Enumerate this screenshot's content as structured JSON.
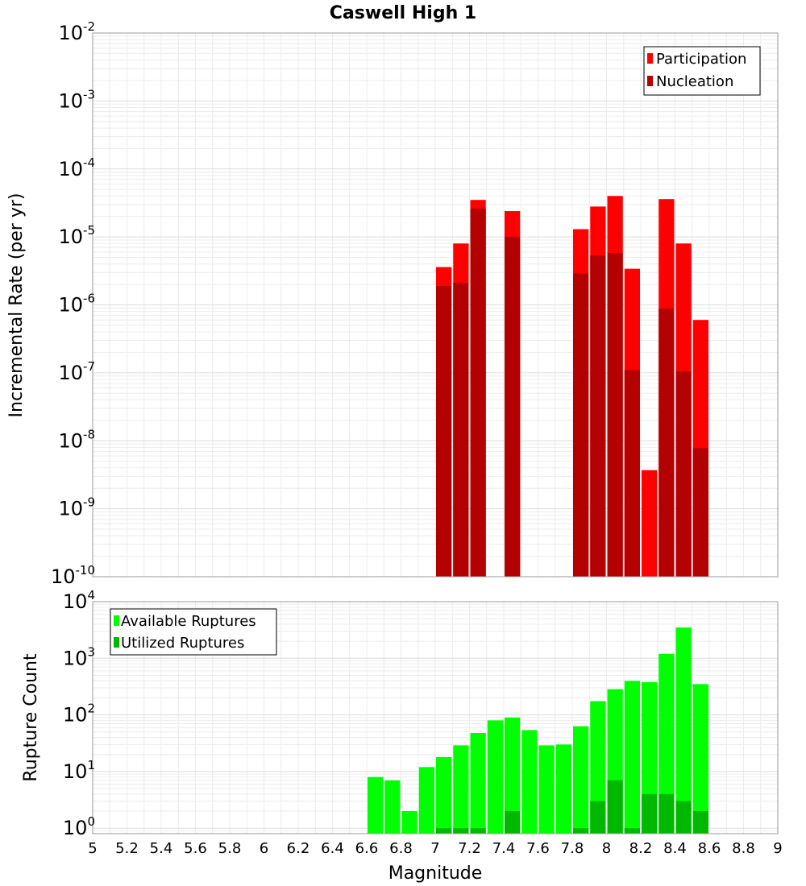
{
  "chart_data": [
    {
      "type": "bar",
      "title": "Caswell High 1",
      "xlabel": "",
      "ylabel": "Incremental Rate (per yr)",
      "yscale": "log",
      "ylim": [
        1e-10,
        0.01
      ],
      "xlim": [
        5,
        9
      ],
      "bin_width": 0.1,
      "legend_position": "top-right",
      "grid": true,
      "y_ticks": [
        {
          "base": "10",
          "exp": "-2"
        },
        {
          "base": "10",
          "exp": "-3"
        },
        {
          "base": "10",
          "exp": "-4"
        },
        {
          "base": "10",
          "exp": "-5"
        },
        {
          "base": "10",
          "exp": "-6"
        },
        {
          "base": "10",
          "exp": "-7"
        },
        {
          "base": "10",
          "exp": "-8"
        },
        {
          "base": "10",
          "exp": "-9"
        },
        {
          "base": "10",
          "exp": "-10"
        }
      ],
      "x": [
        7.05,
        7.15,
        7.25,
        7.45,
        7.85,
        7.95,
        8.05,
        8.15,
        8.25,
        8.35,
        8.45,
        8.55
      ],
      "series": [
        {
          "name": "Participation",
          "color": "#ff0000",
          "values": [
            3.6e-06,
            8e-06,
            3.5e-05,
            2.4e-05,
            1.3e-05,
            2.8e-05,
            4e-05,
            3.4e-06,
            3.7e-09,
            3.6e-05,
            8e-06,
            6e-07
          ]
        },
        {
          "name": "Nucleation",
          "color": "#b30000",
          "values": [
            1.9e-06,
            2.1e-06,
            2.6e-05,
            1e-05,
            2.9e-06,
            5.3e-06,
            5.8e-06,
            1.1e-07,
            null,
            8.8e-07,
            1.05e-07,
            7.8e-09
          ]
        }
      ]
    },
    {
      "type": "bar",
      "title": "",
      "xlabel": "Magnitude",
      "ylabel": "Rupture Count",
      "yscale": "log",
      "ylim": [
        0.8,
        10000
      ],
      "xlim": [
        5,
        9
      ],
      "bin_width": 0.1,
      "legend_position": "top-left",
      "grid": true,
      "x_ticks": [
        "5",
        "5.2",
        "5.4",
        "5.6",
        "5.8",
        "6",
        "6.2",
        "6.4",
        "6.6",
        "6.8",
        "7",
        "7.2",
        "7.4",
        "7.6",
        "7.8",
        "8",
        "8.2",
        "8.4",
        "8.6",
        "8.8",
        "9"
      ],
      "y_ticks": [
        {
          "base": "10",
          "exp": "0"
        },
        {
          "base": "10",
          "exp": "1"
        },
        {
          "base": "10",
          "exp": "2"
        },
        {
          "base": "10",
          "exp": "3"
        },
        {
          "base": "10",
          "exp": "4"
        }
      ],
      "x": [
        6.65,
        6.75,
        6.85,
        6.95,
        7.05,
        7.15,
        7.25,
        7.35,
        7.45,
        7.55,
        7.65,
        7.75,
        7.85,
        7.95,
        8.05,
        8.15,
        8.25,
        8.35,
        8.45,
        8.55
      ],
      "series": [
        {
          "name": "Available Ruptures",
          "color": "#00ff00",
          "values": [
            8,
            7,
            2,
            12,
            18,
            29,
            48,
            80,
            90,
            54,
            29,
            30,
            63,
            175,
            285,
            400,
            380,
            1200,
            3500,
            350
          ]
        },
        {
          "name": "Utilized Ruptures",
          "color": "#00b800",
          "values": [
            null,
            null,
            null,
            null,
            1,
            1,
            1,
            null,
            2,
            null,
            null,
            null,
            1,
            3,
            7,
            1,
            4,
            4,
            3,
            2
          ]
        }
      ]
    }
  ]
}
